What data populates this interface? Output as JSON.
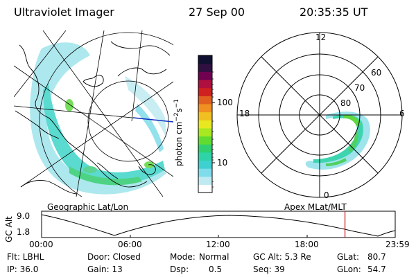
{
  "header": {
    "instrument": "Ultraviolet Imager",
    "date": "27 Sep 00",
    "time": "20:35:35 UT"
  },
  "colorbar": {
    "unit_label": "photon cm",
    "unit_exp": "−2",
    "unit_s": "s",
    "unit_s_exp": "−1",
    "tick_100": "100",
    "tick_10": "10",
    "colors": [
      "#ffffff",
      "#bfeaf2",
      "#7fdcea",
      "#3fd0d0",
      "#2ed4a8",
      "#30d070",
      "#60dc30",
      "#a8e820",
      "#e8e820",
      "#f0c020",
      "#f09020",
      "#e06020",
      "#d02020",
      "#b01040",
      "#700050",
      "#301040",
      "#101030"
    ]
  },
  "maps": {
    "left_label": "Geographic Lat/Lon",
    "right_label": "Apex MLat/MLT",
    "polar": {
      "mlt_12": "12",
      "mlt_18": "18",
      "mlt_6": "6",
      "mlt_0": "0",
      "lat_60": "60",
      "lat_70": "70",
      "lat_80": "80"
    }
  },
  "timeline": {
    "axis_label": "GC Alt",
    "y_top": "9.0",
    "y_bottom": "1.8",
    "x_ticks": [
      "00:00",
      "06:00",
      "12:00",
      "18:00",
      "23:59"
    ],
    "current_fraction": 0.858
  },
  "footer": {
    "row1": {
      "flt": "Flt: LBHL",
      "door": "Door: Closed",
      "mode_label": "Mode:",
      "mode_value": "Normal",
      "gcalt": "GC Alt: 5.3 Re",
      "glat_label": "GLat:",
      "glat_value": "80.7"
    },
    "row2": {
      "ip": "IP: 36.0",
      "gain": "Gain: 13",
      "dsp_label": "Dsp:",
      "dsp_value": "0.5",
      "seq": "Seq: 39",
      "glon_label": "GLon:",
      "glon_value": "54.7"
    }
  }
}
